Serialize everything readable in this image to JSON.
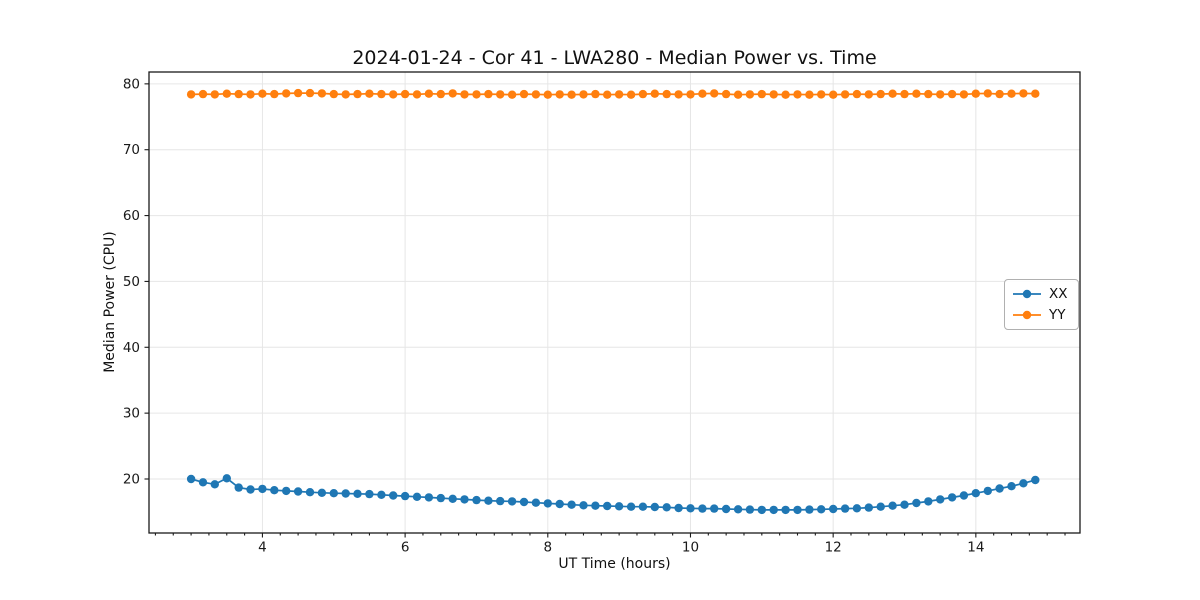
{
  "chart_data": {
    "type": "line",
    "title": "2024-01-24 - Cor 41 - LWA280 - Median Power vs. Time",
    "xlabel": "UT Time (hours)",
    "ylabel": "Median Power (CPU)",
    "xlim": [
      2.41,
      15.46
    ],
    "ylim": [
      11.8,
      81.8
    ],
    "xticks": [
      4,
      6,
      8,
      10,
      12,
      14
    ],
    "yticks": [
      20,
      30,
      40,
      50,
      60,
      70,
      80
    ],
    "x_minor_tick_step": 0.25,
    "grid": true,
    "legend_position": "center right",
    "x": [
      3.0,
      3.167,
      3.333,
      3.5,
      3.667,
      3.833,
      4.0,
      4.167,
      4.333,
      4.5,
      4.667,
      4.833,
      5.0,
      5.167,
      5.333,
      5.5,
      5.667,
      5.833,
      6.0,
      6.167,
      6.333,
      6.5,
      6.667,
      6.833,
      7.0,
      7.167,
      7.333,
      7.5,
      7.667,
      7.833,
      8.0,
      8.167,
      8.333,
      8.5,
      8.667,
      8.833,
      9.0,
      9.167,
      9.333,
      9.5,
      9.667,
      9.833,
      10.0,
      10.167,
      10.333,
      10.5,
      10.667,
      10.833,
      11.0,
      11.167,
      11.333,
      11.5,
      11.667,
      11.833,
      12.0,
      12.167,
      12.333,
      12.5,
      12.667,
      12.833,
      13.0,
      13.167,
      13.333,
      13.5,
      13.667,
      13.833,
      14.0,
      14.167,
      14.333,
      14.5,
      14.667,
      14.833
    ],
    "series": [
      {
        "name": "XX",
        "color": "#1f77b4",
        "values": [
          20.0,
          19.5,
          19.2,
          20.1,
          18.7,
          18.4,
          18.5,
          18.3,
          18.2,
          18.1,
          18.0,
          17.9,
          17.85,
          17.8,
          17.75,
          17.7,
          17.6,
          17.5,
          17.4,
          17.3,
          17.2,
          17.1,
          17.0,
          16.9,
          16.8,
          16.7,
          16.65,
          16.6,
          16.5,
          16.4,
          16.3,
          16.2,
          16.1,
          16.0,
          15.95,
          15.9,
          15.85,
          15.8,
          15.8,
          15.75,
          15.7,
          15.6,
          15.55,
          15.5,
          15.5,
          15.45,
          15.4,
          15.35,
          15.3,
          15.3,
          15.3,
          15.3,
          15.35,
          15.4,
          15.45,
          15.5,
          15.55,
          15.65,
          15.8,
          15.95,
          16.1,
          16.35,
          16.6,
          16.9,
          17.2,
          17.5,
          17.85,
          18.2,
          18.55,
          18.9,
          19.35,
          19.85
        ]
      },
      {
        "name": "YY",
        "color": "#ff7f0e",
        "values": [
          78.4,
          78.45,
          78.4,
          78.5,
          78.45,
          78.4,
          78.5,
          78.45,
          78.55,
          78.6,
          78.6,
          78.55,
          78.45,
          78.4,
          78.45,
          78.5,
          78.45,
          78.4,
          78.45,
          78.4,
          78.5,
          78.45,
          78.55,
          78.4,
          78.4,
          78.45,
          78.4,
          78.35,
          78.45,
          78.4,
          78.35,
          78.4,
          78.35,
          78.4,
          78.45,
          78.35,
          78.4,
          78.35,
          78.45,
          78.5,
          78.45,
          78.4,
          78.4,
          78.5,
          78.55,
          78.45,
          78.35,
          78.4,
          78.45,
          78.4,
          78.35,
          78.4,
          78.35,
          78.4,
          78.35,
          78.4,
          78.45,
          78.4,
          78.45,
          78.5,
          78.45,
          78.5,
          78.45,
          78.4,
          78.45,
          78.4,
          78.5,
          78.55,
          78.45,
          78.5,
          78.55,
          78.5
        ]
      }
    ]
  },
  "style": {
    "grid_color": "#e6e6e6",
    "spine_color": "#1a1a1a",
    "tick_label_color": "#1a1a1a"
  }
}
